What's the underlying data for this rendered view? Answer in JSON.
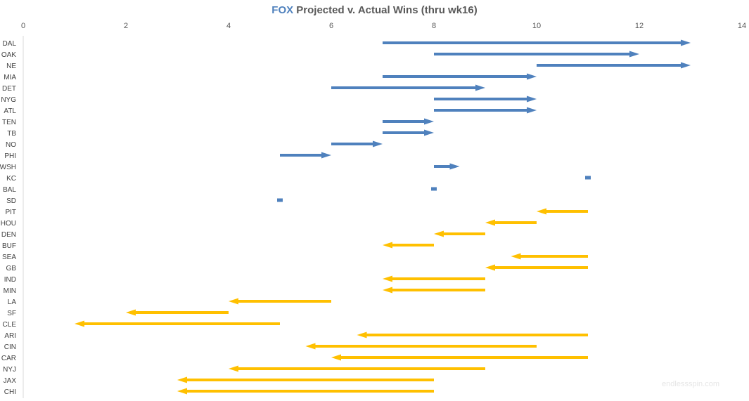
{
  "chart_data": {
    "type": "arrow-range",
    "title_brand": "FOX",
    "title_rest": " Projected v. Actual Wins (thru wk16)",
    "xlim": [
      0,
      14
    ],
    "xticks": [
      0,
      2,
      4,
      6,
      8,
      10,
      12,
      14
    ],
    "grid": false,
    "colors": {
      "improved": "#4f81bd",
      "declined": "#ffc000"
    },
    "teams": [
      {
        "team": "DAL",
        "projected": 7,
        "actual": 13
      },
      {
        "team": "OAK",
        "projected": 8,
        "actual": 12
      },
      {
        "team": "NE",
        "projected": 10,
        "actual": 13
      },
      {
        "team": "MIA",
        "projected": 7,
        "actual": 10
      },
      {
        "team": "DET",
        "projected": 6,
        "actual": 9
      },
      {
        "team": "NYG",
        "projected": 8,
        "actual": 10
      },
      {
        "team": "ATL",
        "projected": 8,
        "actual": 10
      },
      {
        "team": "TEN",
        "projected": 7,
        "actual": 8
      },
      {
        "team": "TB",
        "projected": 7,
        "actual": 8
      },
      {
        "team": "NO",
        "projected": 6,
        "actual": 7
      },
      {
        "team": "PHI",
        "projected": 5,
        "actual": 6
      },
      {
        "team": "WSH",
        "projected": 8,
        "actual": 8.5
      },
      {
        "team": "KC",
        "projected": 11,
        "actual": 11
      },
      {
        "team": "BAL",
        "projected": 8,
        "actual": 8
      },
      {
        "team": "SD",
        "projected": 5,
        "actual": 5
      },
      {
        "team": "PIT",
        "projected": 11,
        "actual": 10
      },
      {
        "team": "HOU",
        "projected": 10,
        "actual": 9
      },
      {
        "team": "DEN",
        "projected": 9,
        "actual": 8
      },
      {
        "team": "BUF",
        "projected": 8,
        "actual": 7
      },
      {
        "team": "SEA",
        "projected": 11,
        "actual": 9.5
      },
      {
        "team": "GB",
        "projected": 11,
        "actual": 9
      },
      {
        "team": "IND",
        "projected": 9,
        "actual": 7
      },
      {
        "team": "MIN",
        "projected": 9,
        "actual": 7
      },
      {
        "team": "LA",
        "projected": 6,
        "actual": 4
      },
      {
        "team": "SF",
        "projected": 4,
        "actual": 2
      },
      {
        "team": "CLE",
        "projected": 5,
        "actual": 1
      },
      {
        "team": "ARI",
        "projected": 11,
        "actual": 6.5
      },
      {
        "team": "CIN",
        "projected": 10,
        "actual": 5.5
      },
      {
        "team": "CAR",
        "projected": 11,
        "actual": 6
      },
      {
        "team": "NYJ",
        "projected": 9,
        "actual": 4
      },
      {
        "team": "JAX",
        "projected": 8,
        "actual": 3
      },
      {
        "team": "CHI",
        "projected": 8,
        "actual": 3
      }
    ]
  },
  "watermark": "endlessspin.com"
}
